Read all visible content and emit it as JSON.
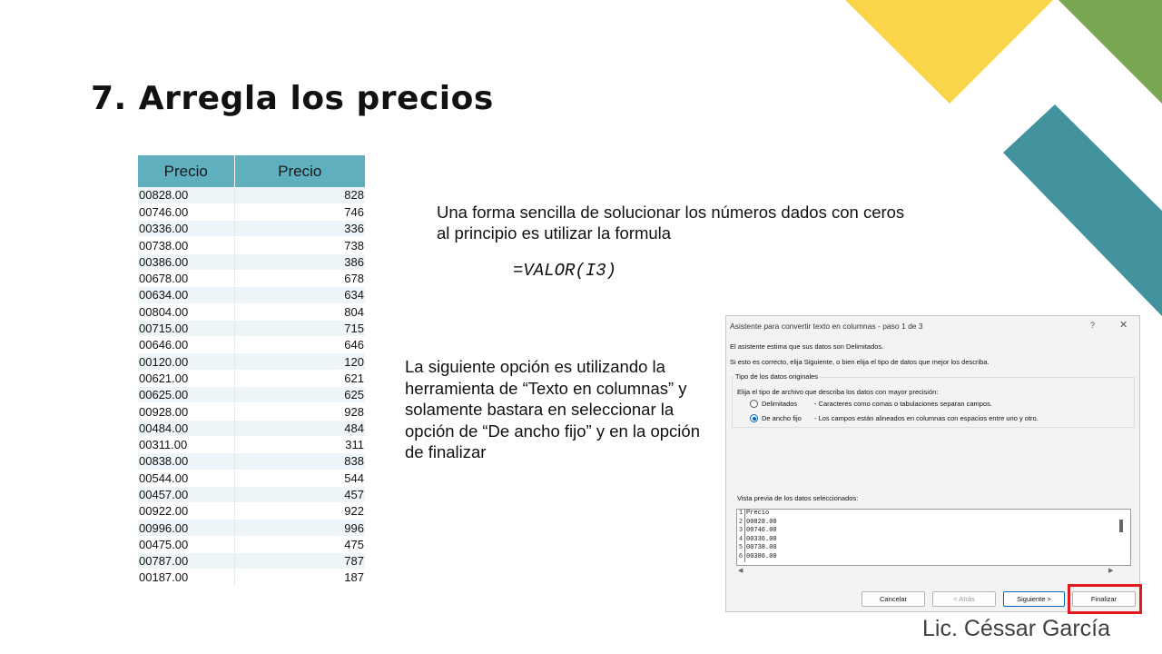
{
  "slide": {
    "title": "7. Arregla los precios",
    "author": "Lic. Céssar García",
    "colors": {
      "yellow": "#fad54a",
      "green": "#78a652",
      "teal": "#43939f",
      "header": "#5fafbf",
      "highlight": "#e0191f"
    }
  },
  "table": {
    "headers": [
      "Precio",
      "Precio"
    ],
    "rows": [
      [
        "00828.00",
        "828"
      ],
      [
        "00746.00",
        "746"
      ],
      [
        "00336.00",
        "336"
      ],
      [
        "00738.00",
        "738"
      ],
      [
        "00386.00",
        "386"
      ],
      [
        "00678.00",
        "678"
      ],
      [
        "00634.00",
        "634"
      ],
      [
        "00804.00",
        "804"
      ],
      [
        "00715.00",
        "715"
      ],
      [
        "00646.00",
        "646"
      ],
      [
        "00120.00",
        "120"
      ],
      [
        "00621.00",
        "621"
      ],
      [
        "00625.00",
        "625"
      ],
      [
        "00928.00",
        "928"
      ],
      [
        "00484.00",
        "484"
      ],
      [
        "00311.00",
        "311"
      ],
      [
        "00838.00",
        "838"
      ],
      [
        "00544.00",
        "544"
      ],
      [
        "00457.00",
        "457"
      ],
      [
        "00922.00",
        "922"
      ],
      [
        "00996.00",
        "996"
      ],
      [
        "00475.00",
        "475"
      ],
      [
        "00787.00",
        "787"
      ],
      [
        "00187.00",
        "187"
      ]
    ]
  },
  "text": {
    "para1": "Una forma sencilla de solucionar los números dados con ceros al principio es utilizar la formula",
    "formula": "=VALOR(I3)",
    "para2": "La siguiente opción es utilizando la herramienta de “Texto en columnas” y solamente bastara en seleccionar la opción de “De ancho fijo” y en la opción de finalizar"
  },
  "dialog": {
    "title": "Asistente para convertir texto en columnas - paso 1 de 3",
    "help": "?",
    "close": "✕",
    "line1": "El asistente estima que sus datos son Delimitados.",
    "line2": "Si esto es correcto, elija Siguiente, o bien elija el tipo de datos que mejor los describa.",
    "group_label": "Tipo de los datos originales",
    "group_prompt": "Elija el tipo de archivo que describa los datos con mayor precisión:",
    "options": [
      {
        "label": "Delimitados",
        "desc": "- Caracteres como comas o tabulaciones separan campos.",
        "selected": false
      },
      {
        "label": "De ancho fijo",
        "desc": "- Los campos están alineados en columnas con espacios entre uno y otro.",
        "selected": true
      }
    ],
    "preview_label": "Vista previa de los datos seleccionados:",
    "preview_rows": [
      {
        "n": "1",
        "t": "Precio"
      },
      {
        "n": "2",
        "t": "00828.00"
      },
      {
        "n": "3",
        "t": "00746.00"
      },
      {
        "n": "4",
        "t": "00336.00"
      },
      {
        "n": "5",
        "t": "00738.00"
      },
      {
        "n": "6",
        "t": "00386.00"
      }
    ],
    "arrow_left": "◀",
    "arrow_right": "▶",
    "buttons": {
      "cancel": "Cancelar",
      "back": "< Atrás",
      "next": "Siguiente >",
      "finish": "Finalizar"
    }
  }
}
